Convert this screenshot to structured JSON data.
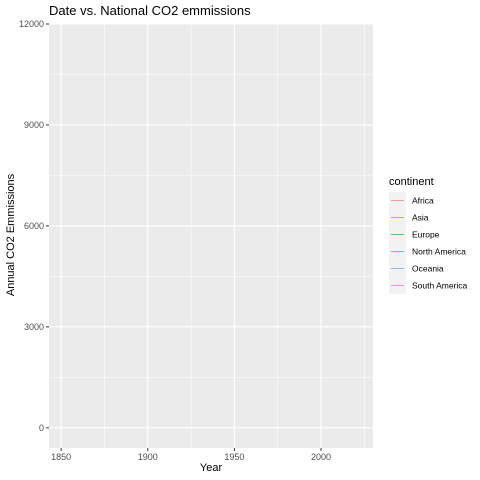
{
  "chart_data": {
    "type": "line",
    "title": "Date vs. National CO2 emmissions",
    "xlabel": "Year",
    "ylabel": "Annual CO2 Emmissions",
    "xlim": [
      1843,
      2030
    ],
    "ylim": [
      -600,
      12000
    ],
    "x_ticks": [
      1850,
      1900,
      1950,
      2000
    ],
    "y_ticks": [
      0,
      3000,
      6000,
      9000,
      12000
    ],
    "x_tick_labels": [
      "1850",
      "1900",
      "1950",
      "2000"
    ],
    "y_tick_labels": [
      "0",
      "3000",
      "6000",
      "9000",
      "12000"
    ],
    "grid": true,
    "legend": {
      "title": "continent",
      "position": "right"
    },
    "series": [
      {
        "name": "Africa",
        "color": "#F8766D",
        "x": [],
        "y": []
      },
      {
        "name": "Asia",
        "color": "#B79F00",
        "x": [],
        "y": []
      },
      {
        "name": "Europe",
        "color": "#00BA38",
        "x": [],
        "y": []
      },
      {
        "name": "North America",
        "color": "#00BFC4",
        "x": [],
        "y": []
      },
      {
        "name": "Oceania",
        "color": "#619CFF",
        "x": [],
        "y": []
      },
      {
        "name": "South America",
        "color": "#F564E3",
        "x": [],
        "y": []
      }
    ],
    "colors": {
      "panel_background": "#EBEBEB",
      "grid_major": "#FFFFFF",
      "legend_key_background": "#F2F2F2"
    }
  }
}
